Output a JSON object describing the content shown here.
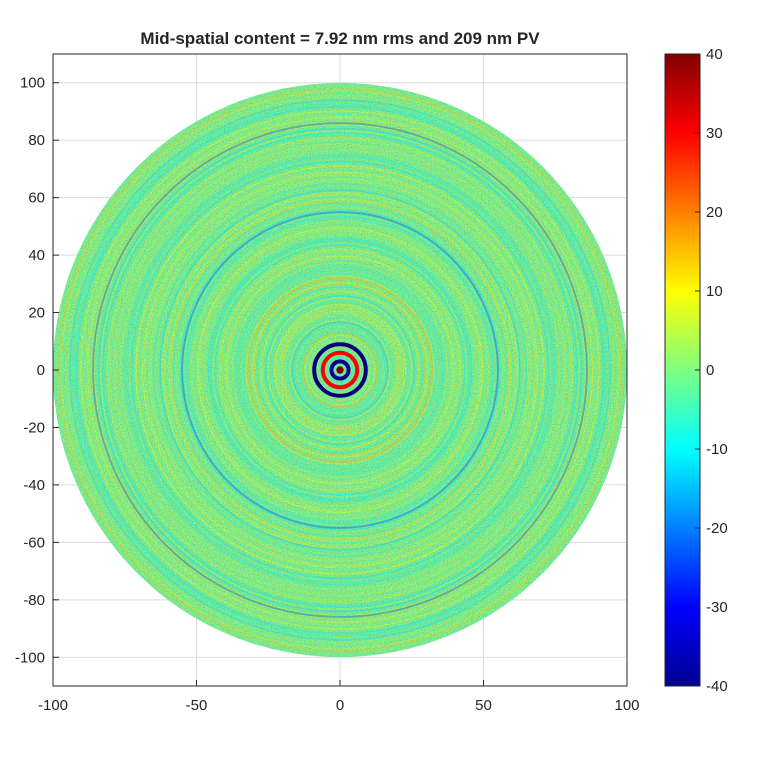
{
  "chart_data": {
    "type": "heatmap",
    "title": "Mid-spatial content = 7.92 nm rms and 209 nm PV",
    "xlabel": "",
    "ylabel": "",
    "xlim": [
      -100,
      100
    ],
    "ylim": [
      -110,
      110
    ],
    "x_ticks": [
      -100,
      -50,
      0,
      50,
      100
    ],
    "y_ticks": [
      100,
      80,
      60,
      40,
      20,
      0,
      -20,
      -40,
      -60,
      -80,
      -100
    ],
    "grid": true,
    "aperture": {
      "shape": "circle",
      "center": [
        0,
        0
      ],
      "radius": 100
    },
    "colorbar": {
      "colormap": "jet",
      "range": [
        -40,
        40
      ],
      "ticks": [
        40,
        30,
        20,
        10,
        0,
        -10,
        -20,
        -30,
        -40
      ]
    },
    "features": {
      "central_rings_radius": [
        3,
        6,
        9
      ],
      "background_level": 0
    }
  }
}
